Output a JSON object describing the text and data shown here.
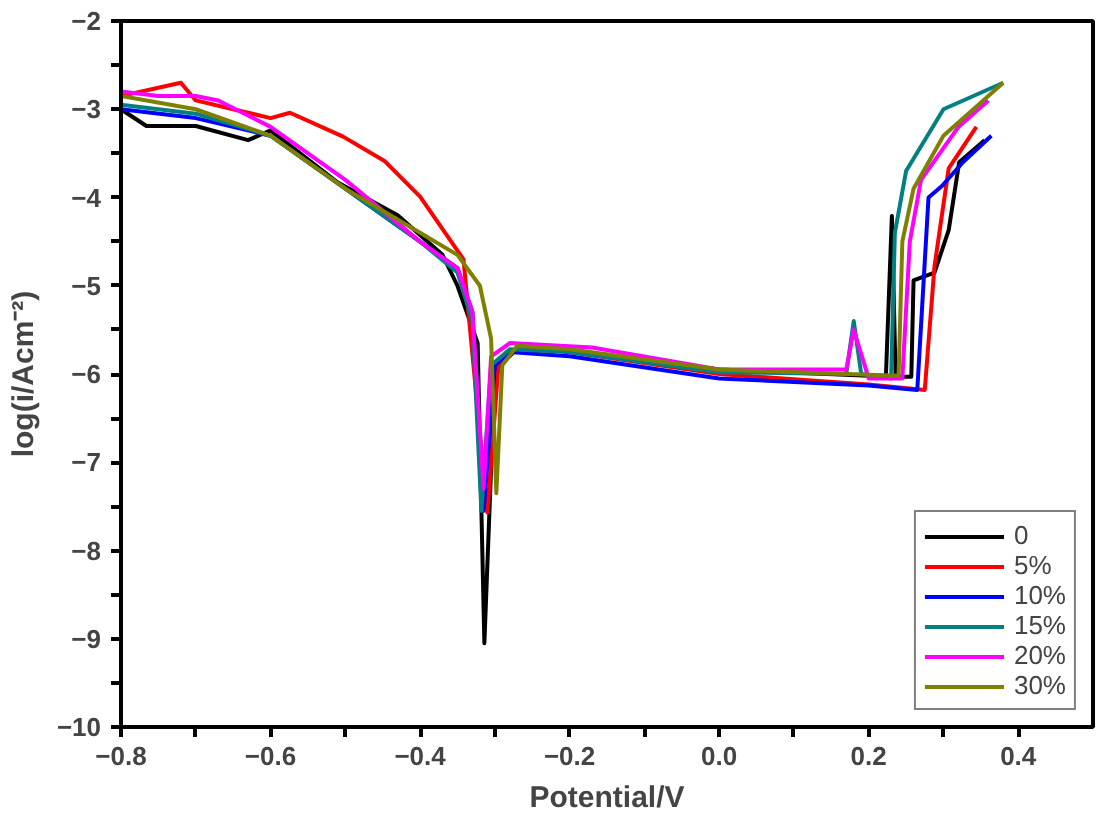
{
  "chart_data": {
    "type": "line",
    "xlabel": "Potential/V",
    "ylabel": "log(i/Acm⁻²)",
    "xlim": [
      -0.8,
      0.5
    ],
    "ylim": [
      -10,
      -2
    ],
    "xticks": [
      -0.8,
      {
        "value": -0.7,
        "label": null
      },
      -0.6,
      {
        "value": -0.5,
        "label": null
      },
      -0.4,
      {
        "value": -0.3,
        "label": null
      },
      -0.2,
      {
        "value": -0.1,
        "label": null
      },
      {
        "value": 0,
        "label": "0.0"
      },
      {
        "value": 0.1,
        "label": null
      },
      0.2,
      {
        "value": 0.3,
        "label": null
      },
      0.4
    ],
    "yticks": [
      -10,
      {
        "value": -9.5,
        "label": null
      },
      -9,
      {
        "value": -8.5,
        "label": null
      },
      -8,
      {
        "value": -7.5,
        "label": null
      },
      -7,
      {
        "value": -6.5,
        "label": null
      },
      -6,
      {
        "value": -5.5,
        "label": null
      },
      -5,
      {
        "value": -4.5,
        "label": null
      },
      -4,
      {
        "value": -3.5,
        "label": null
      },
      -3,
      {
        "value": -2.5,
        "label": null
      },
      -2
    ],
    "grid": false,
    "legend": "bottom right",
    "marker": "none",
    "line_style": "solid",
    "series": [
      {
        "name": "0",
        "color": "#000000",
        "x": [
          -0.8,
          -0.766,
          -0.7,
          -0.63,
          -0.6,
          -0.51,
          -0.43,
          -0.37,
          -0.35,
          -0.323,
          -0.314,
          -0.3,
          -0.266,
          -0.2,
          0.0,
          0.2,
          0.223,
          0.231,
          0.236,
          0.257,
          0.26,
          0.288,
          0.307,
          0.321,
          0.355
        ],
        "values": [
          -3.0,
          -3.19,
          -3.19,
          -3.35,
          -3.24,
          -3.83,
          -4.2,
          -4.65,
          -5.0,
          -5.65,
          -9.05,
          -5.96,
          -5.68,
          -5.75,
          -5.95,
          -6.02,
          -6.03,
          -4.21,
          -6.03,
          -6.03,
          -4.94,
          -4.85,
          -4.37,
          -3.6,
          -3.35
        ]
      },
      {
        "name": "5%",
        "color": "#ff0000",
        "x": [
          -0.8,
          -0.72,
          -0.7,
          -0.65,
          -0.6,
          -0.574,
          -0.503,
          -0.447,
          -0.4,
          -0.342,
          -0.31,
          -0.295,
          -0.27,
          -0.2,
          0.0,
          0.2,
          0.275,
          0.288,
          0.307,
          0.344
        ],
        "values": [
          -2.85,
          -2.7,
          -2.9,
          -3.0,
          -3.1,
          -3.04,
          -3.31,
          -3.59,
          -3.99,
          -4.7,
          -7.57,
          -5.88,
          -5.7,
          -5.75,
          -6.0,
          -6.12,
          -6.18,
          -4.78,
          -3.67,
          -3.2
        ]
      },
      {
        "name": "10%",
        "color": "#0000ff",
        "x": [
          -0.8,
          -0.7,
          -0.6,
          -0.5,
          -0.4,
          -0.35,
          -0.33,
          -0.315,
          -0.3,
          -0.28,
          -0.2,
          0.0,
          0.2,
          0.265,
          0.28,
          0.298,
          0.326,
          0.364
        ],
        "values": [
          -3.0,
          -3.1,
          -3.3,
          -3.9,
          -4.5,
          -4.8,
          -5.3,
          -7.55,
          -5.9,
          -5.75,
          -5.8,
          -6.05,
          -6.13,
          -6.18,
          -4.0,
          -3.87,
          -3.6,
          -3.3
        ]
      },
      {
        "name": "15%",
        "color": "#008080",
        "x": [
          -0.8,
          -0.7,
          -0.6,
          -0.5,
          -0.4,
          -0.35,
          -0.33,
          -0.318,
          -0.305,
          -0.28,
          -0.2,
          0.0,
          0.17,
          0.18,
          0.19,
          0.23,
          0.235,
          0.25,
          0.3,
          0.38
        ],
        "values": [
          -2.95,
          -3.05,
          -3.3,
          -3.9,
          -4.5,
          -4.85,
          -5.4,
          -7.55,
          -5.9,
          -5.72,
          -5.75,
          -5.98,
          -6.0,
          -5.4,
          -6.0,
          -6.05,
          -4.4,
          -3.7,
          -3.0,
          -2.7
        ]
      },
      {
        "name": "20%",
        "color": "#ff00ff",
        "x": [
          -0.8,
          -0.75,
          -0.7,
          -0.67,
          -0.6,
          -0.5,
          -0.4,
          -0.35,
          -0.33,
          -0.315,
          -0.305,
          -0.28,
          -0.17,
          0.0,
          0.17,
          0.18,
          0.2,
          0.245,
          0.255,
          0.27,
          0.32,
          0.36
        ],
        "values": [
          -2.8,
          -2.85,
          -2.85,
          -2.9,
          -3.2,
          -3.8,
          -4.5,
          -4.8,
          -5.3,
          -7.3,
          -5.8,
          -5.65,
          -5.7,
          -5.95,
          -5.95,
          -5.5,
          -6.05,
          -6.05,
          -4.5,
          -3.8,
          -3.2,
          -2.9
        ]
      },
      {
        "name": "30%",
        "color": "#808000",
        "x": [
          -0.8,
          -0.7,
          -0.6,
          -0.55,
          -0.5,
          -0.4,
          -0.35,
          -0.32,
          -0.305,
          -0.298,
          -0.29,
          -0.27,
          -0.2,
          0.0,
          0.24,
          0.245,
          0.26,
          0.3,
          0.38
        ],
        "values": [
          -2.85,
          -3.0,
          -3.3,
          -3.6,
          -3.9,
          -4.4,
          -4.65,
          -5.0,
          -5.6,
          -7.35,
          -5.9,
          -5.68,
          -5.72,
          -5.95,
          -6.02,
          -4.5,
          -3.9,
          -3.3,
          -2.7
        ]
      }
    ]
  }
}
